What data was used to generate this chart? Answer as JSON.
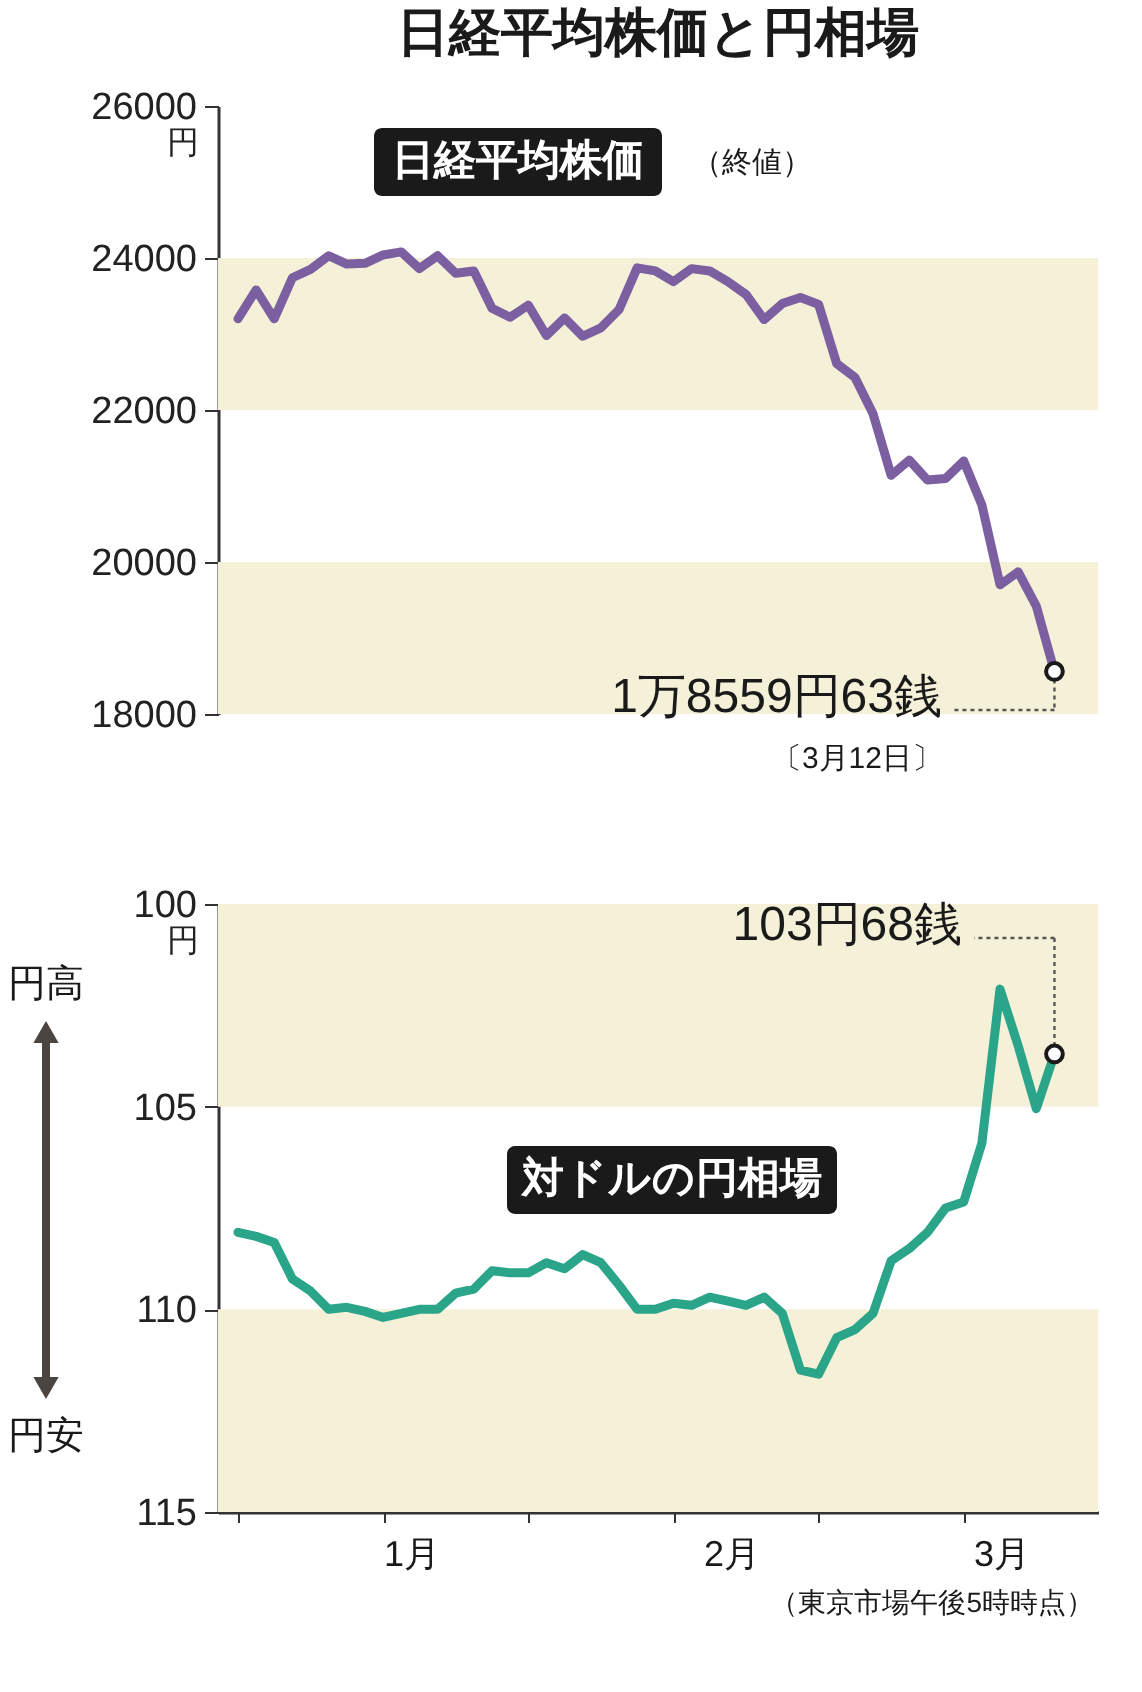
{
  "chart_data": [
    {
      "type": "line",
      "title": "日経平均株価と円相場",
      "ylabel": "円",
      "categories": [
        null,
        null,
        null,
        null,
        null,
        null,
        null,
        null,
        null,
        null,
        null,
        null,
        null,
        null,
        null,
        null,
        null,
        null,
        null,
        null,
        null,
        null,
        null,
        null,
        null,
        null,
        null,
        null,
        null,
        null,
        null,
        null,
        null,
        null,
        null,
        null,
        null,
        null,
        null,
        null,
        null,
        null,
        null,
        null,
        null,
        null
      ],
      "series": [
        {
          "color": "#7b5fa0",
          "values": [
            23200,
            23580,
            23200,
            23740,
            23850,
            24030,
            23920,
            23930,
            24040,
            24080,
            23860,
            24030,
            23800,
            23830,
            23340,
            23220,
            23380,
            22980,
            23210,
            22970,
            23080,
            23320,
            23870,
            23830,
            23690,
            23860,
            23830,
            23690,
            23520,
            23190,
            23400,
            23480,
            23390,
            22610,
            22430,
            21950,
            21140,
            21340,
            21080,
            21100,
            21330,
            20750,
            19700,
            19870,
            19420,
            18560
          ]
        }
      ],
      "ylim": [
        18000,
        26000
      ],
      "yticks": [
        18000,
        20000,
        22000,
        24000,
        26000
      ],
      "bands": [
        {
          "axis": "y",
          "from": 22000,
          "to": 24000,
          "color": "#f5f0d8"
        },
        {
          "axis": "y",
          "from": 18000,
          "to": 20000,
          "color": "#f5f0d8"
        }
      ],
      "annotations": [
        "日経平均株価",
        "（終値）",
        "1万8559円63銭",
        "〔3月12日〕"
      ],
      "grid": false,
      "line_style": "solid",
      "marker": "none"
    },
    {
      "type": "line",
      "ylabel": "円",
      "categories": [
        null,
        null,
        null,
        null,
        null,
        null,
        null,
        null,
        null,
        null,
        null,
        null,
        null,
        null,
        null,
        null,
        null,
        null,
        null,
        null,
        null,
        null,
        null,
        null,
        null,
        null,
        null,
        null,
        null,
        null,
        null,
        null,
        null,
        null,
        null,
        null,
        null,
        null,
        null,
        null,
        null,
        null,
        null,
        null,
        null,
        null
      ],
      "series": [
        {
          "color": "#2aa58a",
          "values": [
            108.1,
            108.2,
            108.35,
            109.25,
            109.55,
            110.0,
            109.95,
            110.05,
            110.2,
            110.1,
            110.0,
            110.0,
            109.6,
            109.5,
            109.05,
            109.1,
            109.1,
            108.85,
            109.0,
            108.65,
            108.85,
            109.4,
            110.0,
            110.0,
            109.85,
            109.9,
            109.7,
            109.8,
            109.9,
            109.7,
            110.1,
            111.5,
            111.6,
            110.7,
            110.5,
            110.1,
            108.8,
            108.5,
            108.1,
            107.5,
            107.35,
            105.9,
            102.1,
            103.5,
            105.05,
            103.7
          ]
        }
      ],
      "ylim": [
        115,
        100
      ],
      "yticks": [
        100,
        105,
        110,
        115
      ],
      "bands": [
        {
          "axis": "y",
          "from": 100,
          "to": 105,
          "color": "#f5f0d8"
        },
        {
          "axis": "y",
          "from": 110,
          "to": 115,
          "color": "#f5f0d8"
        }
      ],
      "annotations": [
        "対ドルの円相場",
        "103円68銭",
        "円高",
        "円安",
        "1月",
        "2月",
        "3月",
        "（東京市場午後5時時点）"
      ],
      "grid": false,
      "line_style": "solid",
      "marker": "none"
    }
  ]
}
